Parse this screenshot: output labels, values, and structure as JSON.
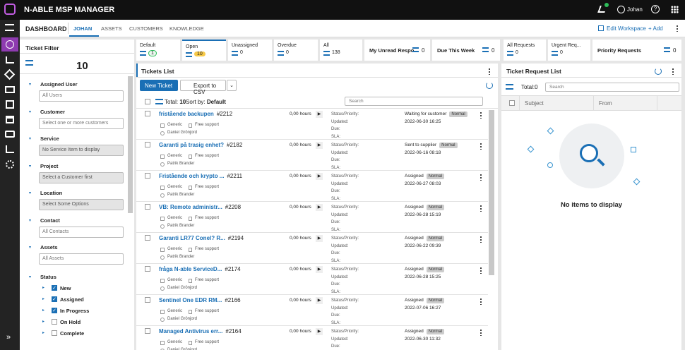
{
  "header": {
    "app_title": "N-ABLE MSP MANAGER",
    "user": "Johan"
  },
  "tabs": {
    "dashboard": "DASHBOARD",
    "items": [
      "JOHAN",
      "ASSETS",
      "CUSTOMERS",
      "KNOWLEDGE"
    ],
    "active": 0,
    "edit_workspace": "Edit Workspace",
    "add": "+ Add"
  },
  "ticket_tiles": [
    {
      "label": "Default",
      "count": "1",
      "badge": "green"
    },
    {
      "label": "Open",
      "count": "10",
      "badge": "yellow",
      "active": true
    },
    {
      "label": "Unassigned",
      "count": "0"
    },
    {
      "label": "Overdue",
      "count": "0"
    },
    {
      "label": "All",
      "count": "138"
    },
    {
      "label": "My Unread Respo...",
      "count": "0"
    },
    {
      "label": "Due This Week",
      "count": "0"
    }
  ],
  "request_tiles": [
    {
      "label": "All Requests",
      "count": "0"
    },
    {
      "label": "Urgent Req...",
      "count": "0"
    },
    {
      "label": "Priority Requests",
      "count": "0"
    }
  ],
  "ticket_filter": {
    "title": "Ticket Filter",
    "count": "10",
    "fields": [
      {
        "label": "Assigned User",
        "placeholder": "All Users"
      },
      {
        "label": "Customer",
        "placeholder": "Select one or more customers"
      },
      {
        "label": "Service",
        "placeholder": "No Service Item to display",
        "disabled": true
      },
      {
        "label": "Project",
        "placeholder": "Select a Customer first",
        "disabled": true
      },
      {
        "label": "Location",
        "placeholder": "Select Some Options",
        "disabled": true
      },
      {
        "label": "Contact",
        "placeholder": "All Contacts"
      },
      {
        "label": "Assets",
        "placeholder": "All Assets"
      }
    ],
    "status_label": "Status",
    "status_options": [
      {
        "label": "New",
        "checked": true
      },
      {
        "label": "Assigned",
        "checked": true
      },
      {
        "label": "In Progress",
        "checked": true
      },
      {
        "label": "On Hold",
        "checked": false
      },
      {
        "label": "Complete",
        "checked": false
      }
    ]
  },
  "tickets_list": {
    "title": "Tickets List",
    "new_ticket": "New Ticket",
    "export": "Export to CSV",
    "total_label": "Total:",
    "total": "10",
    "sort_label": "Sort by:",
    "sort_value": "Default",
    "search": "Search",
    "field_labels": [
      "Status/Priority:",
      "Updated:",
      "Due:",
      "SLA:"
    ],
    "tickets": [
      {
        "title": "fristående backupen",
        "number": "#2212",
        "customer": "Generic",
        "service": "Free support",
        "assignee": "Daniel Grönjord",
        "hours": "0,00 hours",
        "status": "Waiting for customer",
        "priority": "Normal",
        "updated": "2022-06-30 16:25"
      },
      {
        "title": "Garanti på trasig enhet?",
        "number": "#2182",
        "customer": "Generic",
        "service": "Free support",
        "assignee": "Patrik Brander",
        "hours": "0,00 hours",
        "status": "Sent to supplier",
        "priority": "Normal",
        "updated": "2022-06-16 08:18"
      },
      {
        "title": "Fristående och krypto ...",
        "number": "#2211",
        "customer": "Generic",
        "service": "Free support",
        "assignee": "Patrik Brander",
        "hours": "0,00 hours",
        "status": "Assigned",
        "priority": "Normal",
        "updated": "2022-06-27 08:03"
      },
      {
        "title": "VB: Remote administr...",
        "number": "#2208",
        "customer": "Generic",
        "service": "Free support",
        "assignee": "Patrik Brander",
        "hours": "0,00 hours",
        "status": "Assigned",
        "priority": "Normal",
        "updated": "2022-06-28 15:19"
      },
      {
        "title": "Garanti LR77 Conel? R...",
        "number": "#2194",
        "customer": "Generic",
        "service": "Free support",
        "assignee": "Patrik Brander",
        "hours": "0,00 hours",
        "status": "Assigned",
        "priority": "Normal",
        "updated": "2022-06-22 09:39"
      },
      {
        "title": "fråga N-able ServiceD...",
        "number": "#2174",
        "customer": "Generic",
        "service": "Free support",
        "assignee": "Daniel Grönjord",
        "hours": "0,00 hours",
        "status": "Assigned",
        "priority": "Normal",
        "updated": "2022-06-28 15:25"
      },
      {
        "title": "Sentinel One EDR RM...",
        "number": "#2166",
        "customer": "Generic",
        "service": "Free support",
        "assignee": "Daniel Grönjord",
        "hours": "0,00 hours",
        "status": "Assigned",
        "priority": "Normal",
        "updated": "2022-07-06 16:27"
      },
      {
        "title": "Managed Antivirus err...",
        "number": "#2164",
        "customer": "Generic",
        "service": "Free support",
        "assignee": "Daniel Grönjord",
        "hours": "0,00 hours",
        "status": "Assigned",
        "priority": "Normal",
        "updated": "2022-06-30 11:32"
      }
    ]
  },
  "request_list": {
    "title": "Ticket Request List",
    "total_label": "Total:",
    "total": "0",
    "search": "Search",
    "columns": [
      "Subject",
      "From"
    ],
    "empty": "No items to display"
  }
}
